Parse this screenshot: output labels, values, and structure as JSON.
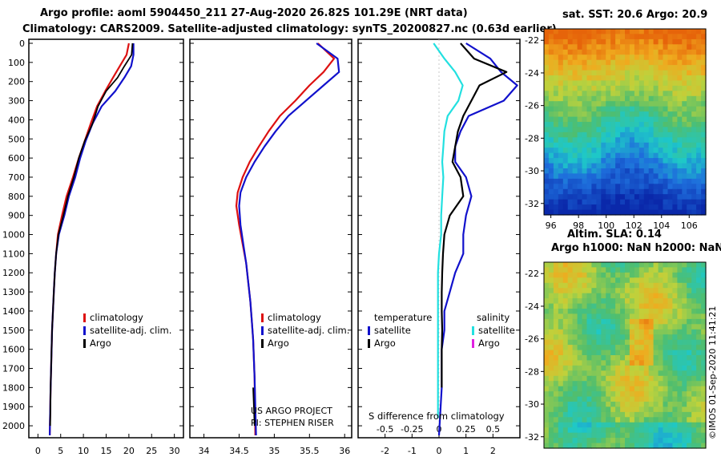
{
  "title": {
    "line1": "Argo profile: aoml 5904450_211 27-Aug-2020 26.82S 101.29E (NRT data)",
    "line2": "Climatology: CARS2009. Satellite-adjusted climatology: synTS_20200827.nc (0.63d earlier)"
  },
  "colors": {
    "climatology": "#dd1111",
    "satellite": "#1111cc",
    "argo": "#000000",
    "salinity_satellite": "#22e0e0",
    "salinity_argo": "#e020e0"
  },
  "chart_data": [
    {
      "type": "line",
      "name": "temperature-profile",
      "ylabel": "",
      "ylim": [
        2050,
        0
      ],
      "yticks": [
        0,
        100,
        200,
        300,
        400,
        500,
        600,
        700,
        800,
        900,
        1000,
        1100,
        1200,
        1300,
        1400,
        1500,
        1600,
        1700,
        1800,
        1900,
        2000
      ],
      "xlim": [
        -2,
        32
      ],
      "xticks": [
        0,
        5,
        10,
        15,
        20,
        25,
        30
      ],
      "legend": [
        "climatology",
        "satellite-adj. clim.",
        "Argo"
      ],
      "series": [
        {
          "name": "climatology",
          "x": [
            20.0,
            19.5,
            18.0,
            16.5,
            14.8,
            13.0,
            11.6,
            10.3,
            9.0,
            7.7,
            6.3,
            5.3,
            4.4,
            4.0,
            3.7,
            3.5,
            3.3,
            3.1,
            3.0,
            2.9,
            2.8,
            2.6
          ],
          "y": [
            0,
            60,
            120,
            180,
            250,
            330,
            420,
            510,
            600,
            700,
            800,
            900,
            1000,
            1100,
            1200,
            1300,
            1400,
            1500,
            1600,
            1700,
            1800,
            2050
          ]
        },
        {
          "name": "satellite-adj. clim.",
          "x": [
            21.0,
            21.0,
            20.5,
            19.0,
            17.0,
            14.0,
            12.0,
            10.5,
            9.3,
            8.2,
            6.8,
            5.8,
            4.6,
            4.0,
            3.7,
            3.5,
            3.3,
            3.1,
            3.0,
            2.9,
            2.8,
            2.6
          ],
          "y": [
            0,
            60,
            120,
            180,
            250,
            330,
            420,
            510,
            600,
            700,
            800,
            900,
            1000,
            1100,
            1200,
            1300,
            1400,
            1500,
            1600,
            1700,
            1800,
            2050
          ]
        },
        {
          "name": "Argo",
          "x": [
            20.8,
            20.6,
            19.0,
            17.5,
            15.0,
            13.2,
            12.0,
            10.3,
            9.0,
            7.9,
            6.6,
            5.6,
            4.5,
            4.0,
            3.7,
            3.5,
            3.3,
            3.1,
            3.0,
            2.9,
            2.8,
            2.7
          ],
          "y": [
            0,
            60,
            120,
            180,
            250,
            330,
            420,
            510,
            600,
            700,
            800,
            900,
            1000,
            1100,
            1200,
            1300,
            1400,
            1500,
            1600,
            1700,
            1800,
            2000
          ]
        }
      ]
    },
    {
      "type": "line",
      "name": "salinity-profile",
      "ylim": [
        2050,
        0
      ],
      "xlim": [
        33.8,
        36.1
      ],
      "xticks": [
        34,
        34.5,
        35,
        35.5,
        36
      ],
      "xticklabels": [
        "34",
        "34.5",
        "35",
        "35.5",
        "36"
      ],
      "legend": [
        "climatology",
        "satellite-adj. clim.",
        "Argo"
      ],
      "series": [
        {
          "name": "climatology",
          "x": [
            35.62,
            35.85,
            35.7,
            35.5,
            35.3,
            35.08,
            34.92,
            34.78,
            34.65,
            34.55,
            34.48,
            34.46,
            34.5,
            34.55,
            34.6,
            34.63,
            34.66,
            34.68,
            34.7,
            34.71,
            34.72,
            34.73
          ],
          "y": [
            0,
            80,
            150,
            220,
            300,
            380,
            460,
            540,
            620,
            700,
            780,
            850,
            950,
            1050,
            1150,
            1250,
            1350,
            1450,
            1550,
            1650,
            1750,
            2050
          ]
        },
        {
          "name": "satellite-adj. clim.",
          "x": [
            35.6,
            35.9,
            35.92,
            35.7,
            35.45,
            35.2,
            35.02,
            34.86,
            34.72,
            34.6,
            34.52,
            34.5,
            34.52,
            34.56,
            34.6,
            34.63,
            34.66,
            34.68,
            34.7,
            34.71,
            34.72,
            34.74
          ],
          "y": [
            0,
            80,
            150,
            220,
            300,
            380,
            460,
            540,
            620,
            700,
            780,
            850,
            950,
            1050,
            1150,
            1250,
            1350,
            1450,
            1550,
            1650,
            1750,
            2050
          ]
        },
        {
          "name": "Argo",
          "x": [
            34.7,
            34.71,
            34.72
          ],
          "y": [
            1800,
            1900,
            2000
          ]
        }
      ]
    },
    {
      "type": "line",
      "name": "difference-profile",
      "xlabel": "S difference from climatology",
      "ylim": [
        2050,
        0
      ],
      "xlim": [
        -3.0,
        3.0
      ],
      "xticks_temperature": [
        -2,
        -1,
        0,
        1,
        2
      ],
      "xticks_salinity": [
        -0.5,
        -0.25,
        0,
        0.25,
        0.5
      ],
      "xticks_salinity_labels": [
        "-0.5",
        "-0.25",
        "0",
        "0.25",
        "0.5"
      ],
      "legend_temperature_title": "temperature",
      "legend_salinity_title": "salinity",
      "legend_temperature": [
        "satellite",
        "Argo"
      ],
      "legend_salinity": [
        "satellite",
        "Argo"
      ],
      "series": [
        {
          "name": "temperature satellite",
          "x": [
            1.0,
            1.9,
            2.3,
            2.9,
            2.4,
            1.1,
            0.8,
            0.6,
            0.6,
            1.0,
            1.2,
            1.0,
            0.9,
            0.9,
            0.6,
            0.4,
            0.2,
            0.2,
            0.1,
            0.1,
            0.1,
            0.0
          ],
          "y": [
            0,
            80,
            150,
            220,
            300,
            380,
            460,
            540,
            620,
            700,
            800,
            900,
            1000,
            1100,
            1200,
            1300,
            1400,
            1500,
            1600,
            1700,
            1800,
            2050
          ]
        },
        {
          "name": "temperature Argo",
          "x": [
            0.8,
            1.3,
            2.5,
            1.5,
            1.2,
            0.9,
            0.7,
            0.6,
            0.5,
            0.8,
            0.9,
            0.4,
            0.2,
            0.15,
            0.12,
            0.1,
            0.1,
            0.12,
            0.1,
            0.1,
            0.1
          ],
          "y": [
            0,
            80,
            150,
            220,
            300,
            380,
            460,
            540,
            620,
            700,
            800,
            900,
            1000,
            1100,
            1200,
            1300,
            1400,
            1500,
            1600,
            1700,
            1800
          ]
        },
        {
          "name": "salinity satellite",
          "x": [
            -0.05,
            0.05,
            0.15,
            0.22,
            0.18,
            0.08,
            0.05,
            0.04,
            0.03,
            0.04,
            0.03,
            0.02,
            0.02,
            0.0,
            -0.01,
            -0.01,
            -0.01,
            -0.01,
            -0.01,
            -0.01,
            -0.01,
            -0.01
          ],
          "y": [
            0,
            80,
            150,
            220,
            300,
            380,
            460,
            540,
            620,
            700,
            800,
            900,
            1000,
            1100,
            1200,
            1300,
            1400,
            1500,
            1600,
            1700,
            1800,
            1960
          ]
        }
      ]
    },
    {
      "type": "heatmap",
      "name": "sst-map",
      "title": "sat. SST: 20.6 Argo: 20.9",
      "xlim": [
        95.5,
        107.2
      ],
      "ylim": [
        -32.7,
        -21.3
      ],
      "xticks": [
        96,
        98,
        100,
        102,
        104,
        106
      ],
      "yticks": [
        -22,
        -24,
        -26,
        -28,
        -30,
        -32
      ]
    },
    {
      "type": "heatmap",
      "name": "sla-map",
      "title_line1": "Altim. SLA: 0.14",
      "title_line2": "Argo h1000: NaN h2000: NaN",
      "ylim": [
        -32.7,
        -21.3
      ],
      "yticks": [
        -22,
        -24,
        -26,
        -28,
        -30,
        -32
      ]
    }
  ],
  "footer": {
    "credit_line1": "US ARGO PROJECT",
    "credit_line2": "PI: STEPHEN RISER",
    "stamp": "©IMOS 01-Sep-2020 11:41:21"
  }
}
